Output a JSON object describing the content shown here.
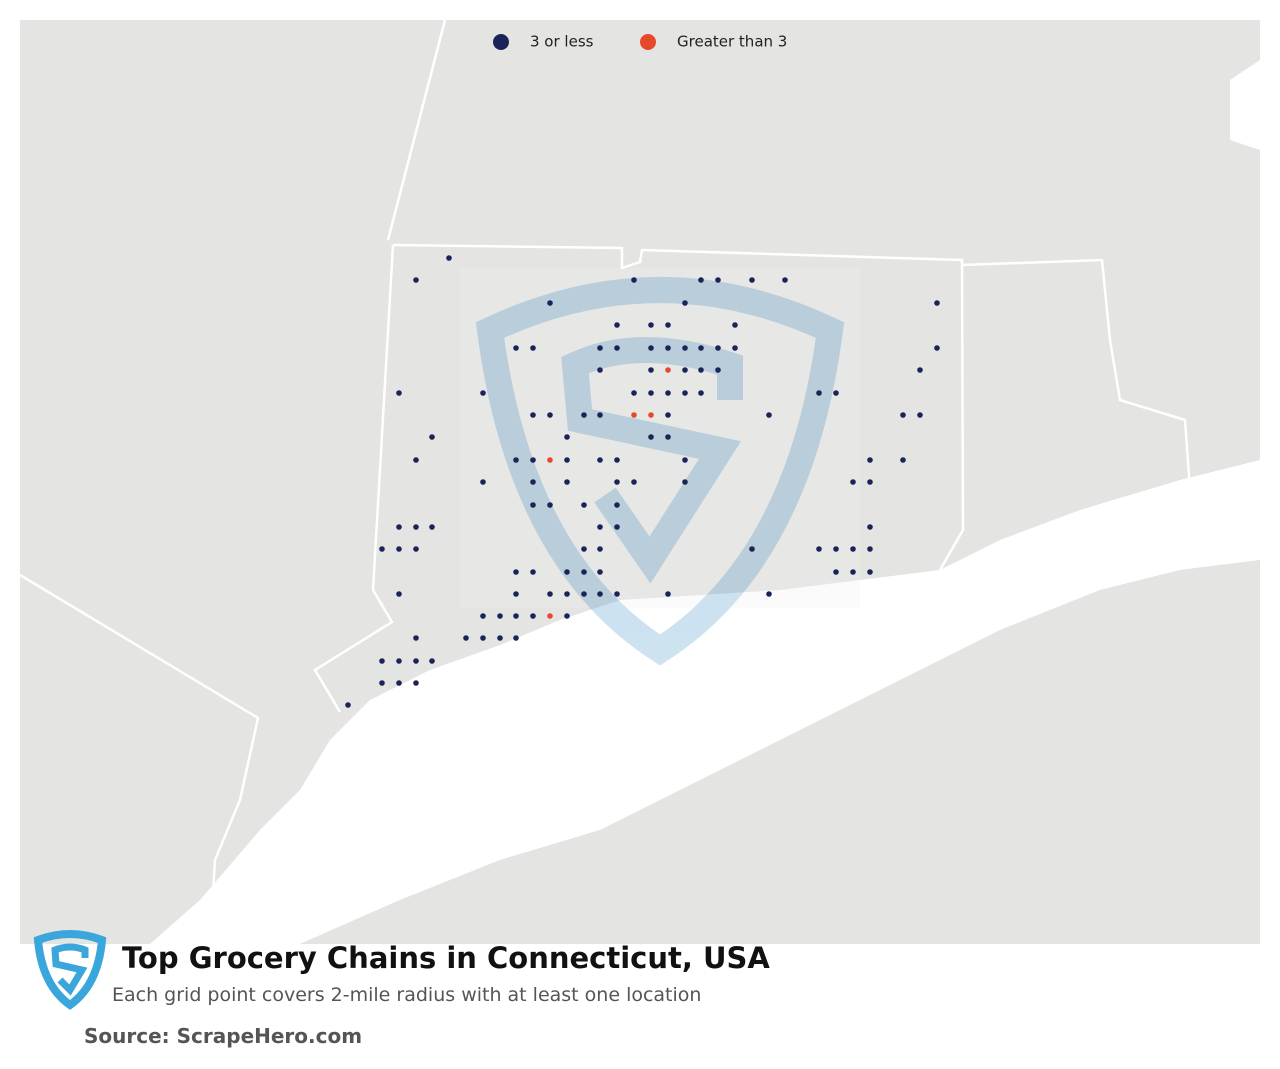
{
  "legend": {
    "items": [
      {
        "label": "3 or less",
        "color": "#1b2459"
      },
      {
        "label": "Greater than 3",
        "color": "#e5482a"
      }
    ]
  },
  "footer": {
    "title": "Top Grocery Chains in Connecticut, USA",
    "subtitle": "Each grid point covers 2-mile radius with at least one location",
    "source": "Source: ScrapeHero.com"
  }
}
